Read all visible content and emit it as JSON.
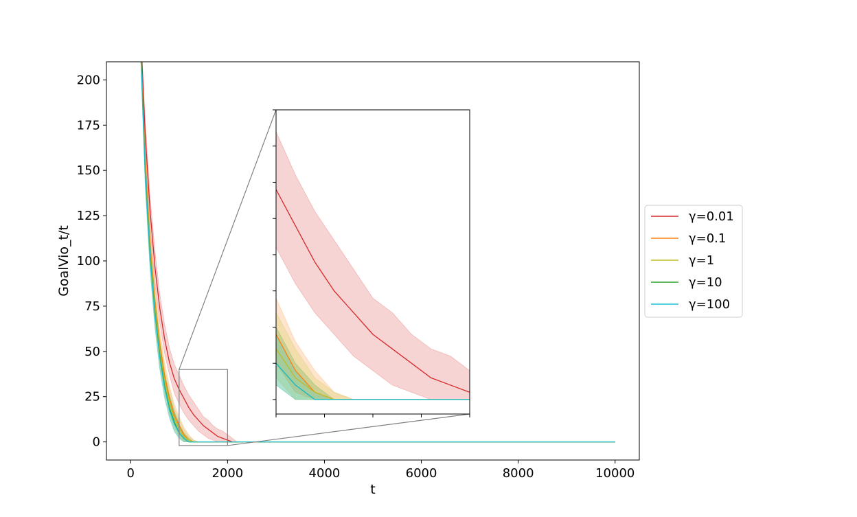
{
  "chart_data": {
    "type": "line",
    "xlabel": "t",
    "ylabel": "GoalVio_t/t",
    "title": "",
    "xlim": [
      -500,
      10500
    ],
    "ylim": [
      -10,
      210
    ],
    "x_ticks": [
      0,
      2000,
      4000,
      6000,
      8000,
      10000
    ],
    "y_ticks": [
      0,
      25,
      50,
      75,
      100,
      125,
      150,
      175,
      200
    ],
    "x_tick_labels": [
      "0",
      "2000",
      "4000",
      "6000",
      "8000",
      "10000"
    ],
    "y_tick_labels": [
      "0",
      "25",
      "50",
      "75",
      "100",
      "125",
      "150",
      "175",
      "200"
    ],
    "grid": false,
    "legend_position": "right",
    "series": [
      {
        "name": "γ=0.01",
        "color": "#d62728",
        "x": [
          200,
          300,
          400,
          500,
          600,
          700,
          800,
          900,
          1000,
          1100,
          1200,
          1300,
          1400,
          1500,
          1600,
          1700,
          1800,
          1900,
          2000,
          2100,
          2200,
          10000
        ],
        "y": [
          230,
          170,
          128,
          97,
          74,
          57,
          44,
          35,
          29,
          24,
          19,
          15,
          12,
          9,
          7,
          5,
          3,
          2,
          1,
          0,
          0,
          0
        ],
        "lower": [
          228,
          162,
          120,
          88,
          66,
          49,
          37,
          27,
          21,
          16,
          12,
          9,
          6,
          4,
          2,
          1,
          0,
          0,
          0,
          0,
          0,
          0
        ],
        "upper": [
          232,
          178,
          136,
          106,
          82,
          65,
          52,
          43,
          37,
          31,
          26,
          22,
          18,
          14,
          12,
          9,
          7,
          6,
          4,
          2,
          0,
          0
        ]
      },
      {
        "name": "γ=0.1",
        "color": "#ff7f0e",
        "x": [
          200,
          300,
          400,
          500,
          600,
          700,
          800,
          900,
          1000,
          1100,
          1200,
          1300,
          1400,
          10000
        ],
        "y": [
          225,
          155,
          110,
          78,
          54,
          37,
          24,
          15,
          9,
          4,
          1,
          0,
          0,
          0
        ],
        "lower": [
          222,
          148,
          102,
          70,
          47,
          30,
          18,
          10,
          5,
          1,
          0,
          0,
          0,
          0
        ],
        "upper": [
          228,
          162,
          118,
          86,
          62,
          44,
          31,
          21,
          14,
          8,
          4,
          1,
          0,
          0
        ]
      },
      {
        "name": "γ=1",
        "color": "#bcbd22",
        "x": [
          200,
          300,
          400,
          500,
          600,
          700,
          800,
          900,
          1000,
          1100,
          1200,
          1300,
          1400,
          10000
        ],
        "y": [
          224,
          152,
          107,
          75,
          51,
          34,
          22,
          13,
          7,
          3,
          1,
          0,
          0,
          0
        ],
        "lower": [
          221,
          145,
          99,
          67,
          44,
          28,
          16,
          8,
          3,
          0,
          0,
          0,
          0,
          0
        ],
        "upper": [
          227,
          159,
          115,
          83,
          59,
          41,
          29,
          19,
          12,
          7,
          3,
          1,
          0,
          0
        ]
      },
      {
        "name": "γ=10",
        "color": "#2ca02c",
        "x": [
          200,
          300,
          400,
          500,
          600,
          700,
          800,
          900,
          1000,
          1100,
          1200,
          1300,
          10000
        ],
        "y": [
          222,
          150,
          104,
          72,
          48,
          31,
          19,
          11,
          5,
          2,
          0,
          0,
          0
        ],
        "lower": [
          219,
          142,
          96,
          64,
          41,
          25,
          14,
          6,
          2,
          0,
          0,
          0,
          0
        ],
        "upper": [
          225,
          158,
          112,
          80,
          56,
          38,
          26,
          17,
          10,
          5,
          2,
          0,
          0
        ]
      },
      {
        "name": "γ=100",
        "color": "#17becf",
        "x": [
          200,
          300,
          400,
          500,
          600,
          700,
          800,
          900,
          1000,
          1100,
          1200,
          1300,
          10000
        ],
        "y": [
          221,
          149,
          103,
          71,
          47,
          30,
          18,
          10,
          5,
          2,
          0,
          0,
          0
        ],
        "lower": [
          218,
          141,
          95,
          63,
          40,
          24,
          13,
          6,
          2,
          0,
          0,
          0,
          0
        ],
        "upper": [
          224,
          157,
          111,
          79,
          55,
          37,
          25,
          16,
          9,
          4,
          1,
          0,
          0
        ]
      }
    ],
    "inset": {
      "xlim": [
        1000,
        2000
      ],
      "ylim": [
        -2,
        40
      ],
      "x_ticks": [
        1000,
        1250,
        1500,
        1750,
        2000
      ],
      "y_ticks": [
        0,
        5,
        10,
        15,
        20,
        25,
        30,
        35,
        40
      ]
    }
  }
}
